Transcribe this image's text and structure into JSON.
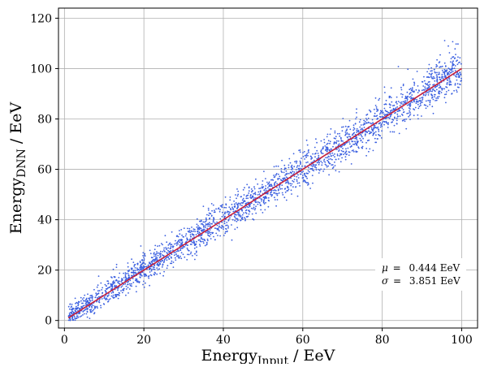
{
  "chart_data": {
    "type": "scatter",
    "xlabel": {
      "main": "Energy",
      "sub": "Input",
      "suffix": " / EeV"
    },
    "ylabel": {
      "main": "Energy",
      "sub": "DNN",
      "suffix": " / EeV"
    },
    "xlim": [
      -1.5,
      104
    ],
    "ylim": [
      -3,
      124
    ],
    "xticks": [
      0,
      20,
      40,
      60,
      80,
      100
    ],
    "yticks": [
      0,
      20,
      40,
      60,
      80,
      100,
      120
    ],
    "grid": true,
    "series": [
      {
        "kind": "scatter",
        "color": "#3a5fe0",
        "x_range": [
          1,
          100
        ],
        "relation": "y ≈ x",
        "noise_sigma": 3.851
      },
      {
        "kind": "line",
        "color": "#c8203a",
        "x": [
          1,
          100
        ],
        "y": [
          1,
          100
        ]
      }
    ],
    "annotations": {
      "mu": {
        "symbol": "μ",
        "value": "0.444 EeV"
      },
      "sigma": {
        "symbol": "σ",
        "value": "3.851 EeV"
      }
    }
  }
}
